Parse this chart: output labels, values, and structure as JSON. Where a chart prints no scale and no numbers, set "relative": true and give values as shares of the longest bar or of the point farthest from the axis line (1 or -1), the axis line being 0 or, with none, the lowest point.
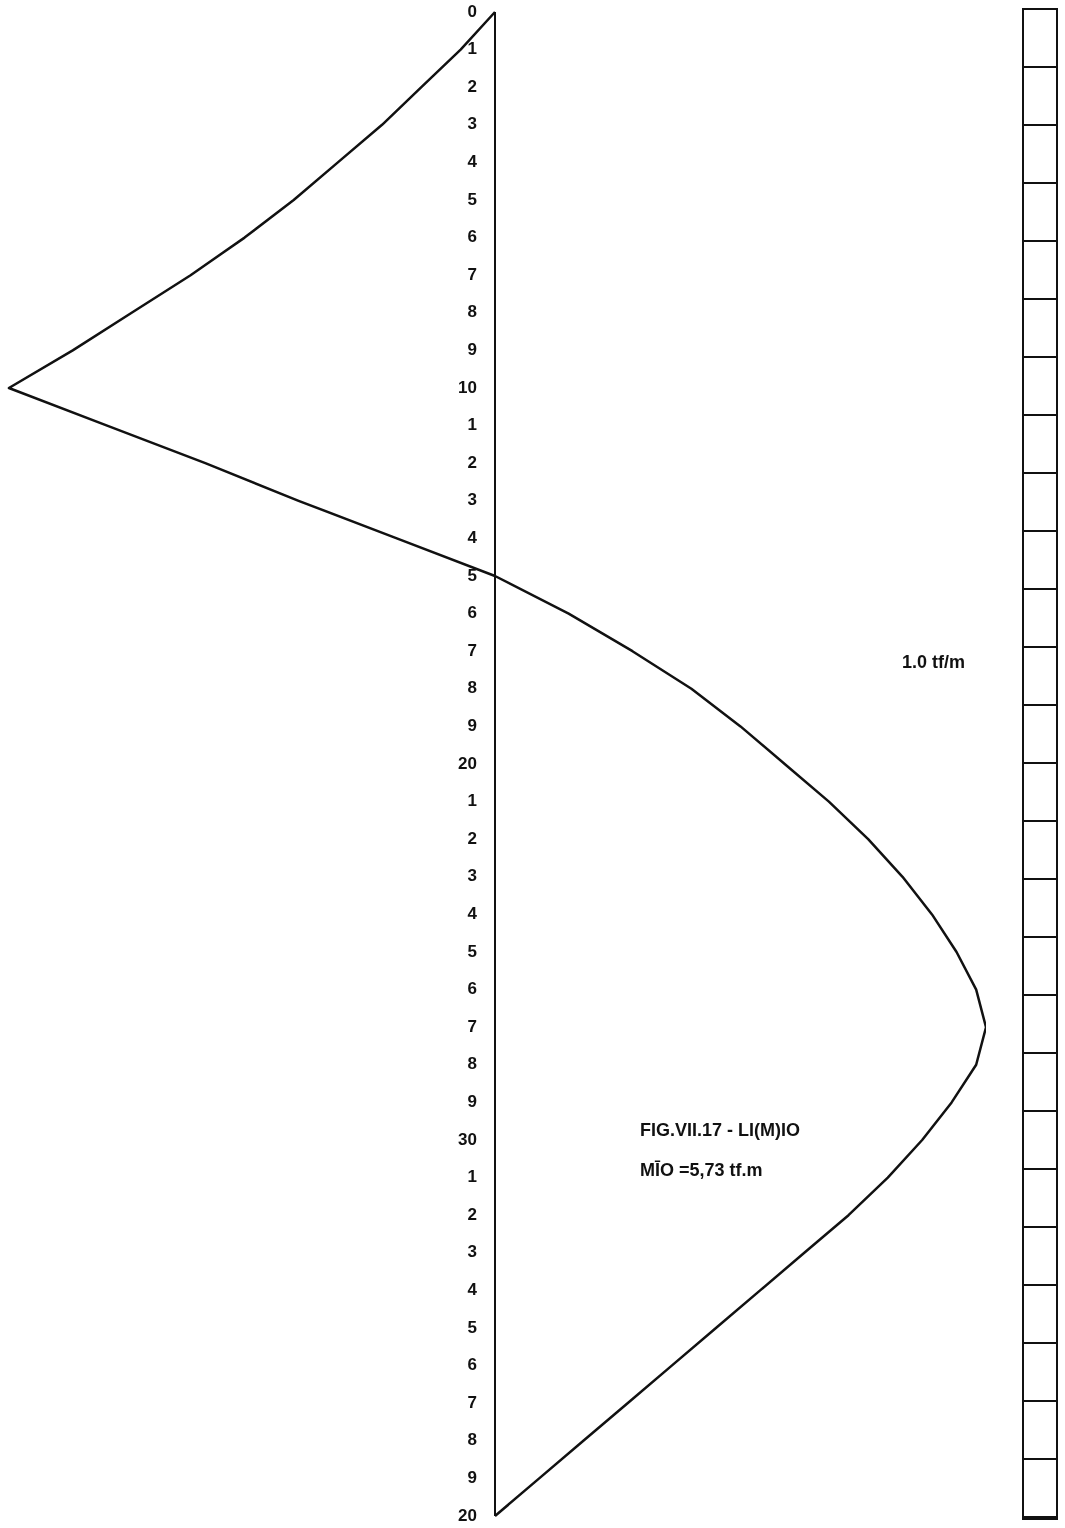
{
  "chart_data": {
    "type": "line",
    "orientation": "horizontal",
    "relative": true,
    "title": "FIG.VII.17 - LI(M)IO",
    "annotations": [
      "1.0 tf/m",
      "MĪO =5,73 tf.m"
    ],
    "color": "#111111",
    "marker": "none",
    "legend": false,
    "categories": [
      "0",
      "1",
      "2",
      "3",
      "4",
      "5",
      "6",
      "7",
      "8",
      "9",
      "10",
      "1",
      "2",
      "3",
      "4",
      "5",
      "6",
      "7",
      "8",
      "9",
      "20",
      "1",
      "2",
      "3",
      "4",
      "5",
      "6",
      "7",
      "8",
      "9",
      "30",
      "1",
      "2",
      "3",
      "4",
      "5",
      "6",
      "7",
      "8",
      "9",
      "20"
    ],
    "values": [
      0,
      -0.07,
      -0.15,
      -0.23,
      -0.32,
      -0.41,
      -0.51,
      -0.62,
      -0.74,
      -0.86,
      -0.99,
      -0.79,
      -0.59,
      -0.4,
      -0.2,
      0,
      0.15,
      0.28,
      0.4,
      0.5,
      0.59,
      0.68,
      0.76,
      0.83,
      0.89,
      0.94,
      0.98,
      1,
      0.98,
      0.93,
      0.87,
      0.8,
      0.72,
      0.63,
      0.54,
      0.45,
      0.36,
      0.27,
      0.18,
      0.09,
      0
    ]
  }
}
